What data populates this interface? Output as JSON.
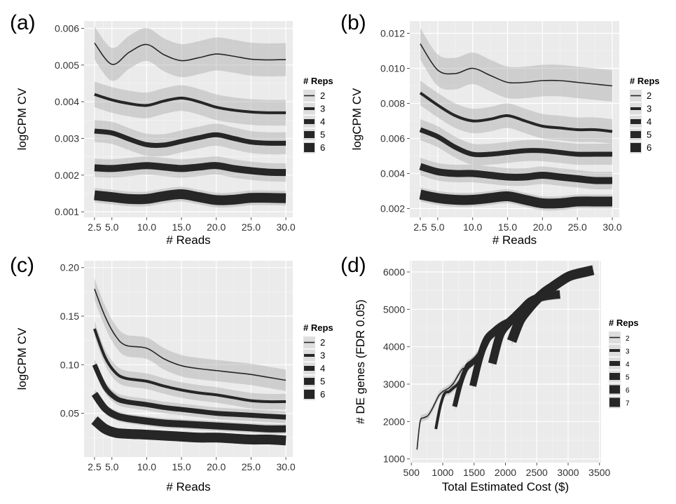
{
  "chart_data": [
    {
      "type": "line",
      "panel_label": "(a)",
      "xlabel": "# Reads",
      "ylabel": "logCPM CV",
      "xlim": [
        1.0,
        31.0
      ],
      "ylim": [
        0.00085,
        0.0062
      ],
      "x_ticks": [
        2.5,
        5.0,
        10.0,
        15.0,
        20.0,
        25.0,
        30.0
      ],
      "x_tick_labels": [
        "2.5",
        "5.0",
        "10.0",
        "15.0",
        "20.0",
        "25.0",
        "30.0"
      ],
      "y_ticks": [
        0.001,
        0.002,
        0.003,
        0.004,
        0.005,
        0.006
      ],
      "y_tick_labels": [
        "0.001",
        "0.002",
        "0.003",
        "0.004",
        "0.005",
        "0.006"
      ],
      "grid": true,
      "legend": {
        "title": "# Reps",
        "placement": "right"
      },
      "series": [
        {
          "name": "2",
          "width": 1.6,
          "band": 0.00045,
          "x": [
            2.5,
            5,
            7.5,
            10,
            12.5,
            15,
            17.5,
            20,
            22.5,
            25,
            27.5,
            30
          ],
          "y": [
            0.0056,
            0.00502,
            0.00535,
            0.00556,
            0.00528,
            0.00512,
            0.0052,
            0.0053,
            0.00524,
            0.00516,
            0.00514,
            0.00515
          ]
        },
        {
          "name": "3",
          "width": 4,
          "band": 0.00035,
          "x": [
            2.5,
            5,
            7.5,
            10,
            12.5,
            15,
            17.5,
            20,
            22.5,
            25,
            27.5,
            30
          ],
          "y": [
            0.0042,
            0.00405,
            0.00395,
            0.0039,
            0.00402,
            0.0041,
            0.004,
            0.00385,
            0.00377,
            0.00372,
            0.0037,
            0.0037
          ]
        },
        {
          "name": "4",
          "width": 7,
          "band": 0.0003,
          "x": [
            2.5,
            5,
            7.5,
            10,
            12.5,
            15,
            17.5,
            20,
            22.5,
            25,
            27.5,
            30
          ],
          "y": [
            0.0032,
            0.00315,
            0.00298,
            0.00283,
            0.00282,
            0.00292,
            0.00302,
            0.0031,
            0.003,
            0.0029,
            0.00287,
            0.00287
          ]
        },
        {
          "name": "5",
          "width": 10,
          "band": 0.00025,
          "x": [
            2.5,
            5,
            7.5,
            10,
            12.5,
            15,
            17.5,
            20,
            22.5,
            25,
            27.5,
            30
          ],
          "y": [
            0.0022,
            0.00218,
            0.00222,
            0.00226,
            0.00222,
            0.00218,
            0.00222,
            0.00226,
            0.00218,
            0.00212,
            0.00208,
            0.00207
          ]
        },
        {
          "name": "6",
          "width": 14,
          "band": 0.0002,
          "x": [
            2.5,
            5,
            7.5,
            10,
            12.5,
            15,
            17.5,
            20,
            22.5,
            25,
            27.5,
            30
          ],
          "y": [
            0.00145,
            0.0014,
            0.00135,
            0.00135,
            0.00143,
            0.00148,
            0.0014,
            0.00132,
            0.00133,
            0.00138,
            0.00138,
            0.00137
          ]
        }
      ]
    },
    {
      "type": "line",
      "panel_label": "(b)",
      "xlabel": "# Reads",
      "ylabel": "logCPM CV",
      "xlim": [
        1.0,
        31.0
      ],
      "ylim": [
        0.0015,
        0.0127
      ],
      "x_ticks": [
        2.5,
        5.0,
        10.0,
        15.0,
        20.0,
        25.0,
        30.0
      ],
      "x_tick_labels": [
        "2.5",
        "5.0",
        "10.0",
        "15.0",
        "20.0",
        "25.0",
        "30.0"
      ],
      "y_ticks": [
        0.002,
        0.004,
        0.006,
        0.008,
        0.01,
        0.012
      ],
      "y_tick_labels": [
        "0.002",
        "0.004",
        "0.006",
        "0.008",
        "0.010",
        "0.012"
      ],
      "grid": true,
      "legend": {
        "title": "# Reps",
        "placement": "right"
      },
      "series": [
        {
          "name": "2",
          "width": 1.6,
          "band": 0.0009,
          "x": [
            2.5,
            5,
            7.5,
            10,
            12.5,
            15,
            17.5,
            20,
            22.5,
            25,
            27.5,
            30
          ],
          "y": [
            0.0114,
            0.0099,
            0.0097,
            0.01,
            0.0096,
            0.0092,
            0.0092,
            0.0093,
            0.0093,
            0.0092,
            0.0091,
            0.009
          ]
        },
        {
          "name": "3",
          "width": 4,
          "band": 0.0007,
          "x": [
            2.5,
            5,
            7.5,
            10,
            12.5,
            15,
            17.5,
            20,
            22.5,
            25,
            27.5,
            30
          ],
          "y": [
            0.0086,
            0.0079,
            0.0073,
            0.007,
            0.0071,
            0.0073,
            0.007,
            0.0067,
            0.0066,
            0.0065,
            0.0065,
            0.0064
          ]
        },
        {
          "name": "4",
          "width": 7,
          "band": 0.0006,
          "x": [
            2.5,
            5,
            7.5,
            10,
            12.5,
            15,
            17.5,
            20,
            22.5,
            25,
            27.5,
            30
          ],
          "y": [
            0.0065,
            0.0061,
            0.0055,
            0.0051,
            0.0051,
            0.0052,
            0.0053,
            0.0053,
            0.0052,
            0.0051,
            0.0051,
            0.0051
          ]
        },
        {
          "name": "5",
          "width": 10,
          "band": 0.0005,
          "x": [
            2.5,
            5,
            7.5,
            10,
            12.5,
            15,
            17.5,
            20,
            22.5,
            25,
            27.5,
            30
          ],
          "y": [
            0.0044,
            0.0041,
            0.004,
            0.004,
            0.0039,
            0.0038,
            0.0038,
            0.0039,
            0.0038,
            0.0037,
            0.0036,
            0.0036
          ]
        },
        {
          "name": "6",
          "width": 14,
          "band": 0.0004,
          "x": [
            2.5,
            5,
            7.5,
            10,
            12.5,
            15,
            17.5,
            20,
            22.5,
            25,
            27.5,
            30
          ],
          "y": [
            0.0028,
            0.0026,
            0.0025,
            0.0025,
            0.0026,
            0.0027,
            0.0025,
            0.0023,
            0.0023,
            0.0024,
            0.0024,
            0.0024
          ]
        }
      ]
    },
    {
      "type": "line",
      "panel_label": "(c)",
      "xlabel": "# Reads",
      "ylabel": "logCPM CV",
      "xlim": [
        1.0,
        31.0
      ],
      "ylim": [
        0.005,
        0.207
      ],
      "x_ticks": [
        2.5,
        5.0,
        10.0,
        15.0,
        20.0,
        25.0,
        30.0
      ],
      "x_tick_labels": [
        "2.5",
        "5.0",
        "10.0",
        "15.0",
        "20.0",
        "25.0",
        "30.0"
      ],
      "y_ticks": [
        0.05,
        0.1,
        0.15,
        0.2
      ],
      "y_tick_labels": [
        "0.05",
        "0.10",
        "0.15",
        "0.20"
      ],
      "grid": true,
      "legend": {
        "title": "# Reps",
        "placement": "right"
      },
      "series": [
        {
          "name": "2",
          "width": 1.6,
          "band": 0.011,
          "x": [
            2.5,
            4,
            5.5,
            7,
            10,
            12.5,
            15,
            17.5,
            20,
            22.5,
            25,
            27.5,
            30
          ],
          "y": [
            0.178,
            0.15,
            0.13,
            0.12,
            0.117,
            0.106,
            0.099,
            0.096,
            0.094,
            0.092,
            0.09,
            0.087,
            0.084
          ]
        },
        {
          "name": "3",
          "width": 4,
          "band": 0.008,
          "x": [
            2.5,
            4,
            5.5,
            7,
            10,
            12.5,
            15,
            17.5,
            20,
            22.5,
            25,
            27.5,
            30
          ],
          "y": [
            0.137,
            0.108,
            0.092,
            0.086,
            0.083,
            0.078,
            0.074,
            0.071,
            0.069,
            0.066,
            0.063,
            0.062,
            0.062
          ]
        },
        {
          "name": "4",
          "width": 7,
          "band": 0.006,
          "x": [
            2.5,
            4,
            5.5,
            7,
            10,
            12.5,
            15,
            17.5,
            20,
            22.5,
            25,
            27.5,
            30
          ],
          "y": [
            0.1,
            0.077,
            0.066,
            0.062,
            0.059,
            0.056,
            0.054,
            0.052,
            0.05,
            0.049,
            0.048,
            0.047,
            0.046
          ]
        },
        {
          "name": "5",
          "width": 10,
          "band": 0.005,
          "x": [
            2.5,
            4,
            5.5,
            7,
            10,
            12.5,
            15,
            17.5,
            20,
            22.5,
            25,
            27.5,
            30
          ],
          "y": [
            0.07,
            0.055,
            0.048,
            0.045,
            0.042,
            0.04,
            0.039,
            0.038,
            0.037,
            0.036,
            0.035,
            0.034,
            0.034
          ]
        },
        {
          "name": "6",
          "width": 14,
          "band": 0.004,
          "x": [
            2.5,
            4,
            5.5,
            7,
            10,
            12.5,
            15,
            17.5,
            20,
            22.5,
            25,
            27.5,
            30
          ],
          "y": [
            0.043,
            0.034,
            0.03,
            0.029,
            0.028,
            0.027,
            0.026,
            0.025,
            0.025,
            0.024,
            0.023,
            0.023,
            0.022
          ]
        }
      ]
    },
    {
      "type": "line",
      "panel_label": "(d)",
      "xlabel": "Total Estimated Cost ($)",
      "ylabel": "# DE genes (FDR 0.05)",
      "xlim": [
        475,
        3525
      ],
      "ylim": [
        900,
        6300
      ],
      "x_ticks": [
        500,
        1000,
        1500,
        2000,
        2500,
        3000,
        3500
      ],
      "x_tick_labels": [
        "500",
        "1000",
        "1500",
        "2000",
        "2500",
        "3000",
        "3500"
      ],
      "y_ticks": [
        1000,
        2000,
        3000,
        4000,
        5000,
        6000
      ],
      "y_tick_labels": [
        "1000",
        "2000",
        "3000",
        "4000",
        "5000",
        "6000"
      ],
      "grid": true,
      "legend": {
        "title": "# Reps",
        "placement": "right"
      },
      "series": [
        {
          "name": "2",
          "width": 1.6,
          "band": 90,
          "x": [
            590,
            640,
            700,
            760,
            820,
            880,
            940,
            1000,
            1050,
            1100,
            1150,
            1200,
            1250,
            1310,
            1370,
            1430,
            1490,
            1550
          ],
          "y": [
            1250,
            2000,
            2100,
            2150,
            2300,
            2500,
            2700,
            2800,
            2850,
            2900,
            2980,
            3100,
            3250,
            3400,
            3450,
            3550,
            3650,
            3800
          ]
        },
        {
          "name": "3",
          "width": 4,
          "band": 100,
          "x": [
            890,
            960,
            1030,
            1100,
            1170,
            1240,
            1310,
            1380,
            1450,
            1520,
            1590,
            1660,
            1730
          ],
          "y": [
            1800,
            2400,
            2750,
            2800,
            2900,
            3000,
            3200,
            3500,
            3600,
            3700,
            3850,
            4050,
            4200
          ]
        },
        {
          "name": "4",
          "width": 7,
          "band": 110,
          "x": [
            1190,
            1280,
            1370,
            1460,
            1550,
            1640,
            1730,
            1820,
            1910,
            2000
          ],
          "y": [
            2400,
            3000,
            3400,
            3550,
            3700,
            3900,
            4200,
            4350,
            4500,
            4600
          ]
        },
        {
          "name": "5",
          "width": 10,
          "band": 120,
          "x": [
            1480,
            1590,
            1700,
            1810,
            1920,
            2030,
            2140,
            2250
          ],
          "y": [
            2950,
            3700,
            4200,
            4400,
            4550,
            4650,
            4700,
            4750
          ]
        },
        {
          "name": "6",
          "width": 12,
          "band": 130,
          "x": [
            1790,
            1910,
            2030,
            2150,
            2270,
            2390,
            2510,
            2630,
            2750,
            2870
          ],
          "y": [
            3550,
            4300,
            4600,
            4800,
            5000,
            5200,
            5300,
            5350,
            5380,
            5400
          ]
        },
        {
          "name": "7",
          "width": 14,
          "band": 140,
          "x": [
            2100,
            2230,
            2360,
            2490,
            2620,
            2750,
            2880,
            3010,
            3140,
            3270,
            3400
          ],
          "y": [
            4150,
            4700,
            5000,
            5250,
            5450,
            5600,
            5750,
            5880,
            5950,
            6000,
            6050
          ]
        }
      ]
    }
  ]
}
